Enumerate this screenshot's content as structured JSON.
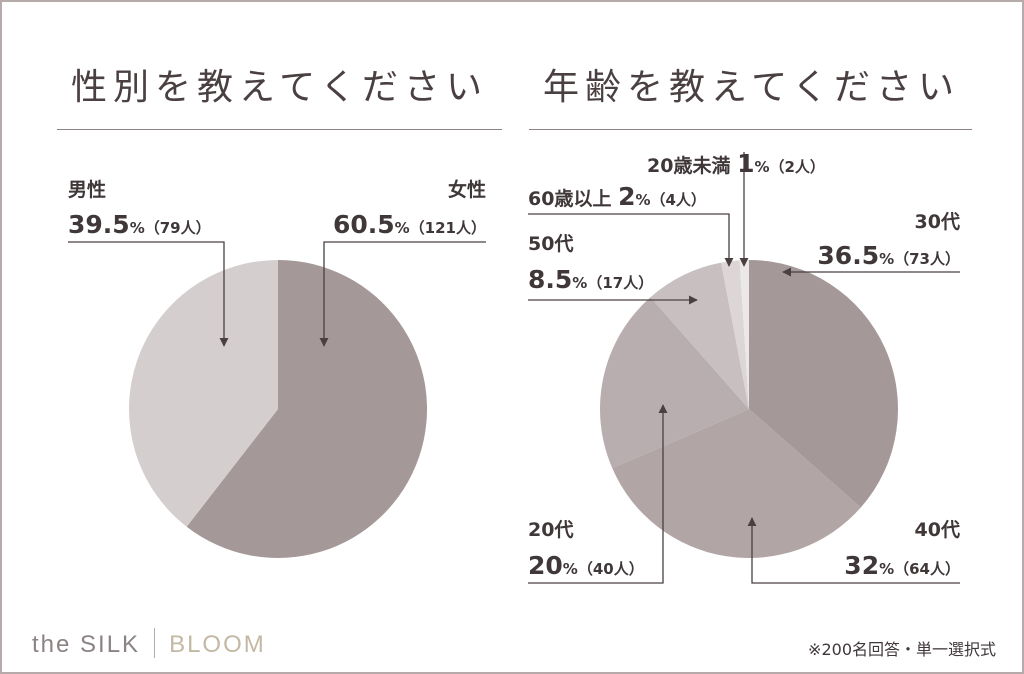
{
  "chart_data": [
    {
      "type": "pie",
      "title": "性別を教えてください",
      "start": "12 o'clock, clockwise",
      "slices": [
        {
          "name": "女性",
          "value": 60.5,
          "pct_label": "60.5",
          "count_label": "（121人）",
          "color": "#a59899"
        },
        {
          "name": "男性",
          "value": 39.5,
          "pct_label": "39.5",
          "count_label": "（79人）",
          "color": "#d5cecf"
        }
      ]
    },
    {
      "type": "pie",
      "title": "年齢を教えてください",
      "start": "12 o'clock, clockwise",
      "slices": [
        {
          "name": "30代",
          "value": 36.5,
          "pct_label": "36.5",
          "count_label": "（73人）",
          "color": "#a59899"
        },
        {
          "name": "40代",
          "value": 32,
          "pct_label": "32",
          "count_label": "（64人）",
          "color": "#b1a5a6"
        },
        {
          "name": "20代",
          "value": 20,
          "pct_label": "20",
          "count_label": "（40人）",
          "color": "#b9aeaf"
        },
        {
          "name": "50代",
          "value": 8.5,
          "pct_label": "8.5",
          "count_label": "（17人）",
          "color": "#c8bfc0"
        },
        {
          "name": "60歳以上",
          "value": 2,
          "pct_label": "2",
          "count_label": "（4人）",
          "color": "#ddd6d7"
        },
        {
          "name": "20歳未満",
          "value": 1,
          "pct_label": "1",
          "count_label": "（2人）",
          "color": "#ece8e8"
        }
      ]
    }
  ],
  "percent_sign": "%",
  "footer": {
    "logo_left": "the SILK",
    "logo_right": "BLOOM",
    "note": "※200名回答・単一選択式"
  }
}
